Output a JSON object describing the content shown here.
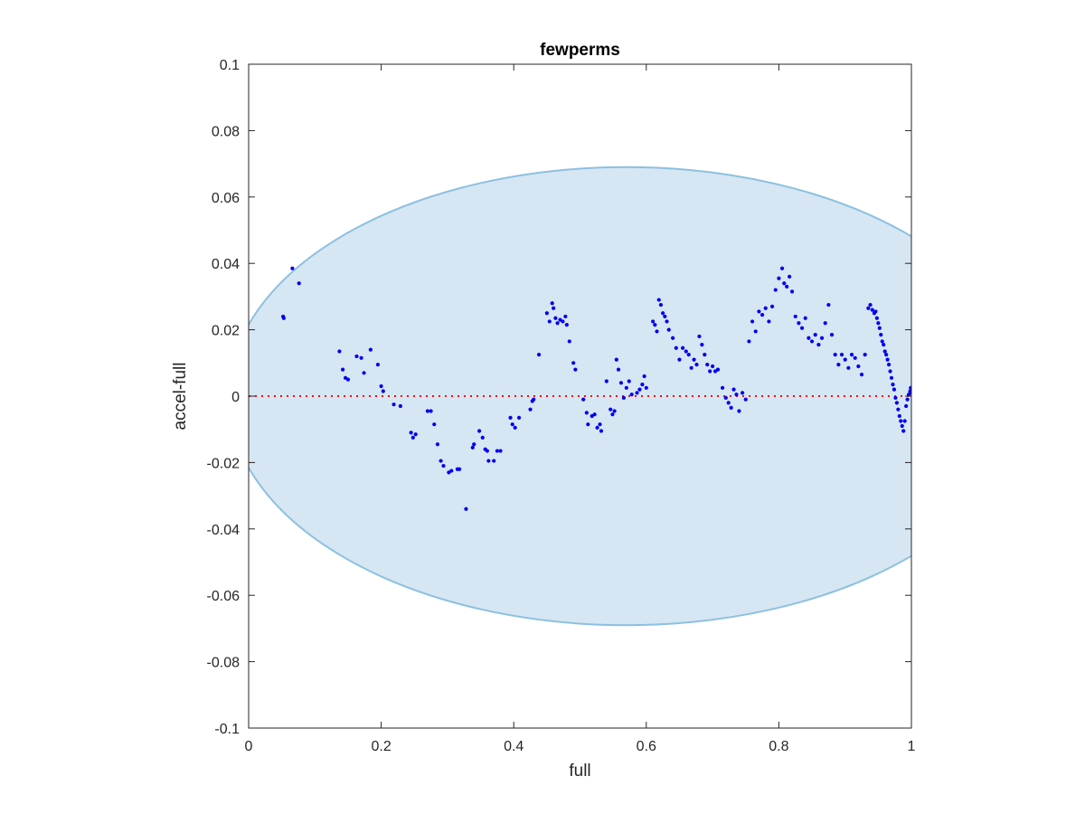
{
  "chart_data": {
    "type": "scatter",
    "title": "fewperms",
    "xlabel": "full",
    "ylabel": "accel-full",
    "xlim": [
      0,
      1
    ],
    "ylim": [
      -0.1,
      0.1
    ],
    "xticks": [
      0,
      0.2,
      0.4,
      0.6,
      0.8,
      1
    ],
    "xtick_labels": [
      "0",
      "0.2",
      "0.4",
      "0.6",
      "0.8",
      "1"
    ],
    "yticks": [
      -0.1,
      -0.08,
      -0.06,
      -0.04,
      -0.02,
      0,
      0.02,
      0.04,
      0.06,
      0.08,
      0.1
    ],
    "ytick_labels": [
      "-0.1",
      "-0.08",
      "-0.06",
      "-0.04",
      "-0.02",
      "0",
      "0.02",
      "0.04",
      "0.06",
      "0.08",
      "0.1"
    ],
    "grid": false,
    "reference_line": {
      "y": 0,
      "style": "dotted",
      "color": "#ff0000"
    },
    "region": {
      "shape": "ellipse",
      "center": [
        0.57,
        0
      ],
      "radii": [
        0.6,
        0.069
      ],
      "fill": "#d6e6f3",
      "stroke": "#8cc0e0"
    },
    "series": [
      {
        "color": "#0000ee",
        "points": [
          [
            0.052,
            0.024
          ],
          [
            0.053,
            0.0235
          ],
          [
            0.066,
            0.0385
          ],
          [
            0.076,
            0.034
          ],
          [
            0.137,
            0.0135
          ],
          [
            0.142,
            0.008
          ],
          [
            0.146,
            0.0055
          ],
          [
            0.15,
            0.005
          ],
          [
            0.163,
            0.012
          ],
          [
            0.17,
            0.0115
          ],
          [
            0.174,
            0.007
          ],
          [
            0.184,
            0.014
          ],
          [
            0.195,
            0.0095
          ],
          [
            0.2,
            0.003
          ],
          [
            0.203,
            0.0015
          ],
          [
            0.219,
            -0.0025
          ],
          [
            0.229,
            -0.003
          ],
          [
            0.245,
            -0.011
          ],
          [
            0.248,
            -0.0125
          ],
          [
            0.252,
            -0.0115
          ],
          [
            0.27,
            -0.0045
          ],
          [
            0.275,
            -0.0045
          ],
          [
            0.28,
            -0.0085
          ],
          [
            0.285,
            -0.0145
          ],
          [
            0.29,
            -0.0195
          ],
          [
            0.294,
            -0.021
          ],
          [
            0.302,
            -0.023
          ],
          [
            0.306,
            -0.0225
          ],
          [
            0.315,
            -0.022
          ],
          [
            0.318,
            -0.022
          ],
          [
            0.328,
            -0.034
          ],
          [
            0.338,
            -0.0155
          ],
          [
            0.34,
            -0.0145
          ],
          [
            0.348,
            -0.0105
          ],
          [
            0.353,
            -0.0125
          ],
          [
            0.357,
            -0.016
          ],
          [
            0.36,
            -0.0165
          ],
          [
            0.362,
            -0.0195
          ],
          [
            0.37,
            -0.0195
          ],
          [
            0.375,
            -0.0165
          ],
          [
            0.38,
            -0.0165
          ],
          [
            0.395,
            -0.0065
          ],
          [
            0.398,
            -0.0085
          ],
          [
            0.402,
            -0.0095
          ],
          [
            0.408,
            -0.0065
          ],
          [
            0.425,
            -0.004
          ],
          [
            0.428,
            -0.0015
          ],
          [
            0.43,
            -0.001
          ],
          [
            0.438,
            0.0125
          ],
          [
            0.45,
            0.025
          ],
          [
            0.454,
            0.0225
          ],
          [
            0.458,
            0.028
          ],
          [
            0.46,
            0.0265
          ],
          [
            0.463,
            0.0235
          ],
          [
            0.466,
            0.022
          ],
          [
            0.47,
            0.023
          ],
          [
            0.474,
            0.0225
          ],
          [
            0.478,
            0.024
          ],
          [
            0.48,
            0.0215
          ],
          [
            0.484,
            0.0165
          ],
          [
            0.49,
            0.01
          ],
          [
            0.493,
            0.008
          ],
          [
            0.505,
            -0.001
          ],
          [
            0.51,
            -0.005
          ],
          [
            0.512,
            -0.0085
          ],
          [
            0.518,
            -0.006
          ],
          [
            0.522,
            -0.0055
          ],
          [
            0.526,
            -0.0095
          ],
          [
            0.53,
            -0.0085
          ],
          [
            0.532,
            -0.0105
          ],
          [
            0.54,
            0.0045
          ],
          [
            0.546,
            -0.004
          ],
          [
            0.549,
            -0.0055
          ],
          [
            0.552,
            -0.0045
          ],
          [
            0.555,
            0.011
          ],
          [
            0.558,
            0.008
          ],
          [
            0.562,
            0.004
          ],
          [
            0.566,
            -0.0005
          ],
          [
            0.57,
            0.0025
          ],
          [
            0.574,
            0.0045
          ],
          [
            0.578,
            0.0005
          ],
          [
            0.586,
            0.001
          ],
          [
            0.59,
            0.002
          ],
          [
            0.594,
            0.0035
          ],
          [
            0.597,
            0.006
          ],
          [
            0.6,
            0.0025
          ],
          [
            0.61,
            0.0225
          ],
          [
            0.613,
            0.0215
          ],
          [
            0.616,
            0.0195
          ],
          [
            0.619,
            0.029
          ],
          [
            0.622,
            0.0275
          ],
          [
            0.625,
            0.025
          ],
          [
            0.628,
            0.024
          ],
          [
            0.631,
            0.0225
          ],
          [
            0.634,
            0.02
          ],
          [
            0.64,
            0.0175
          ],
          [
            0.645,
            0.0145
          ],
          [
            0.65,
            0.011
          ],
          [
            0.655,
            0.0145
          ],
          [
            0.66,
            0.0135
          ],
          [
            0.664,
            0.0125
          ],
          [
            0.668,
            0.0085
          ],
          [
            0.672,
            0.011
          ],
          [
            0.676,
            0.0095
          ],
          [
            0.68,
            0.018
          ],
          [
            0.684,
            0.0155
          ],
          [
            0.688,
            0.0125
          ],
          [
            0.692,
            0.0095
          ],
          [
            0.696,
            0.0075
          ],
          [
            0.7,
            0.009
          ],
          [
            0.704,
            0.0075
          ],
          [
            0.708,
            0.008
          ],
          [
            0.715,
            0.0025
          ],
          [
            0.72,
            -0.0005
          ],
          [
            0.724,
            -0.002
          ],
          [
            0.728,
            -0.0035
          ],
          [
            0.732,
            0.002
          ],
          [
            0.736,
            0.0005
          ],
          [
            0.74,
            -0.0045
          ],
          [
            0.745,
            0.001
          ],
          [
            0.75,
            -0.001
          ],
          [
            0.755,
            0.0165
          ],
          [
            0.76,
            0.0225
          ],
          [
            0.765,
            0.0195
          ],
          [
            0.77,
            0.0255
          ],
          [
            0.775,
            0.0245
          ],
          [
            0.78,
            0.0265
          ],
          [
            0.785,
            0.0225
          ],
          [
            0.79,
            0.027
          ],
          [
            0.795,
            0.032
          ],
          [
            0.8,
            0.0355
          ],
          [
            0.805,
            0.0385
          ],
          [
            0.808,
            0.034
          ],
          [
            0.812,
            0.033
          ],
          [
            0.816,
            0.036
          ],
          [
            0.82,
            0.0315
          ],
          [
            0.825,
            0.024
          ],
          [
            0.83,
            0.022
          ],
          [
            0.835,
            0.0205
          ],
          [
            0.84,
            0.0235
          ],
          [
            0.845,
            0.0175
          ],
          [
            0.85,
            0.0165
          ],
          [
            0.855,
            0.0185
          ],
          [
            0.86,
            0.0155
          ],
          [
            0.865,
            0.0175
          ],
          [
            0.87,
            0.022
          ],
          [
            0.875,
            0.0275
          ],
          [
            0.88,
            0.0185
          ],
          [
            0.885,
            0.0125
          ],
          [
            0.89,
            0.0095
          ],
          [
            0.895,
            0.0125
          ],
          [
            0.9,
            0.011
          ],
          [
            0.905,
            0.0085
          ],
          [
            0.91,
            0.0125
          ],
          [
            0.915,
            0.0115
          ],
          [
            0.92,
            0.009
          ],
          [
            0.925,
            0.0065
          ],
          [
            0.93,
            0.0125
          ],
          [
            0.935,
            0.0265
          ],
          [
            0.938,
            0.0275
          ],
          [
            0.941,
            0.026
          ],
          [
            0.944,
            0.025
          ],
          [
            0.946,
            0.0255
          ],
          [
            0.948,
            0.0235
          ],
          [
            0.95,
            0.022
          ],
          [
            0.952,
            0.0205
          ],
          [
            0.954,
            0.0185
          ],
          [
            0.956,
            0.0165
          ],
          [
            0.958,
            0.0155
          ],
          [
            0.96,
            0.0135
          ],
          [
            0.962,
            0.0125
          ],
          [
            0.964,
            0.011
          ],
          [
            0.966,
            0.0095
          ],
          [
            0.968,
            0.0075
          ],
          [
            0.97,
            0.0055
          ],
          [
            0.972,
            0.0035
          ],
          [
            0.974,
            0.002
          ],
          [
            0.976,
            -0.0005
          ],
          [
            0.978,
            -0.002
          ],
          [
            0.98,
            -0.004
          ],
          [
            0.982,
            -0.006
          ],
          [
            0.984,
            -0.0075
          ],
          [
            0.986,
            -0.009
          ],
          [
            0.988,
            -0.0105
          ],
          [
            0.99,
            -0.0075
          ],
          [
            0.992,
            -0.003
          ],
          [
            0.994,
            -0.001
          ],
          [
            0.996,
            0.0005
          ],
          [
            0.998,
            0.0015
          ],
          [
            0.999,
            0.0025
          ],
          [
            1.0,
            0.001
          ]
        ]
      }
    ]
  }
}
